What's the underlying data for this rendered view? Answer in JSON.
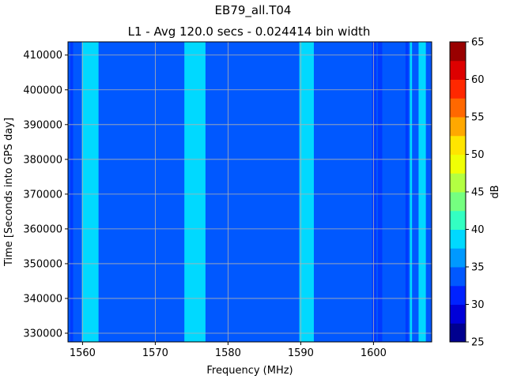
{
  "chart_data": {
    "type": "heatmap",
    "title": "EB79_all.T04",
    "subtitle": "L1 - Avg 120.0 secs - 0.024414 bin width",
    "xlabel": "Frequency (MHz)",
    "ylabel": "Time [Seconds into GPS day]",
    "xlim": [
      1558,
      1608
    ],
    "ylim": [
      327500,
      413800
    ],
    "xticks": [
      1560,
      1570,
      1580,
      1590,
      1600
    ],
    "xtick_labels": [
      "1560",
      "1570",
      "1580",
      "1590",
      "1600"
    ],
    "yticks": [
      330000,
      340000,
      350000,
      360000,
      370000,
      380000,
      390000,
      400000,
      410000
    ],
    "ytick_labels": [
      "330000",
      "340000",
      "350000",
      "360000",
      "370000",
      "380000",
      "390000",
      "400000",
      "410000"
    ],
    "grid": true,
    "background_level_db": 32.5,
    "bands": [
      {
        "x_start": 1559.9,
        "x_end": 1562.2,
        "level_db": 37.5
      },
      {
        "x_start": 1574.0,
        "x_end": 1576.9,
        "level_db": 37.5
      },
      {
        "x_start": 1589.8,
        "x_end": 1591.8,
        "level_db": 37.5
      },
      {
        "x_start": 1605.0,
        "x_end": 1605.3,
        "level_db": 37.5
      },
      {
        "x_start": 1606.2,
        "x_end": 1607.2,
        "level_db": 37.5
      }
    ],
    "dips": [
      {
        "x_start": 1558.3,
        "x_end": 1558.7,
        "level_db": 30.0
      },
      {
        "x_start": 1599.8,
        "x_end": 1600.4,
        "level_db": 30.0
      },
      {
        "x_start": 1600.6,
        "x_end": 1601.2,
        "level_db": 30.0
      },
      {
        "x_start": 1604.4,
        "x_end": 1604.8,
        "level_db": 30.0
      }
    ],
    "colorbar": {
      "label": "dB",
      "min": 25,
      "max": 65,
      "ticks": [
        25,
        30,
        35,
        40,
        45,
        50,
        55,
        60,
        65
      ],
      "tick_labels": [
        "25",
        "30",
        "35",
        "40",
        "45",
        "50",
        "55",
        "60",
        "65"
      ],
      "levels": [
        {
          "from": 25.0,
          "to": 27.5,
          "color": "#00008f"
        },
        {
          "from": 27.5,
          "to": 30.0,
          "color": "#0000d8"
        },
        {
          "from": 30.0,
          "to": 32.5,
          "color": "#0022ff"
        },
        {
          "from": 32.5,
          "to": 35.0,
          "color": "#0058ff"
        },
        {
          "from": 35.0,
          "to": 37.5,
          "color": "#0099ff"
        },
        {
          "from": 37.5,
          "to": 40.0,
          "color": "#00d9ff"
        },
        {
          "from": 40.0,
          "to": 42.5,
          "color": "#33ffc2"
        },
        {
          "from": 42.5,
          "to": 45.0,
          "color": "#75ff80"
        },
        {
          "from": 45.0,
          "to": 47.5,
          "color": "#b3ff42"
        },
        {
          "from": 47.5,
          "to": 50.0,
          "color": "#f0ff05"
        },
        {
          "from": 50.0,
          "to": 52.5,
          "color": "#ffe500"
        },
        {
          "from": 52.5,
          "to": 55.0,
          "color": "#ffa800"
        },
        {
          "from": 55.0,
          "to": 57.5,
          "color": "#ff6800"
        },
        {
          "from": 57.5,
          "to": 60.0,
          "color": "#ff2800"
        },
        {
          "from": 60.0,
          "to": 62.5,
          "color": "#dd0000"
        },
        {
          "from": 62.5,
          "to": 65.0,
          "color": "#990000"
        }
      ]
    }
  }
}
